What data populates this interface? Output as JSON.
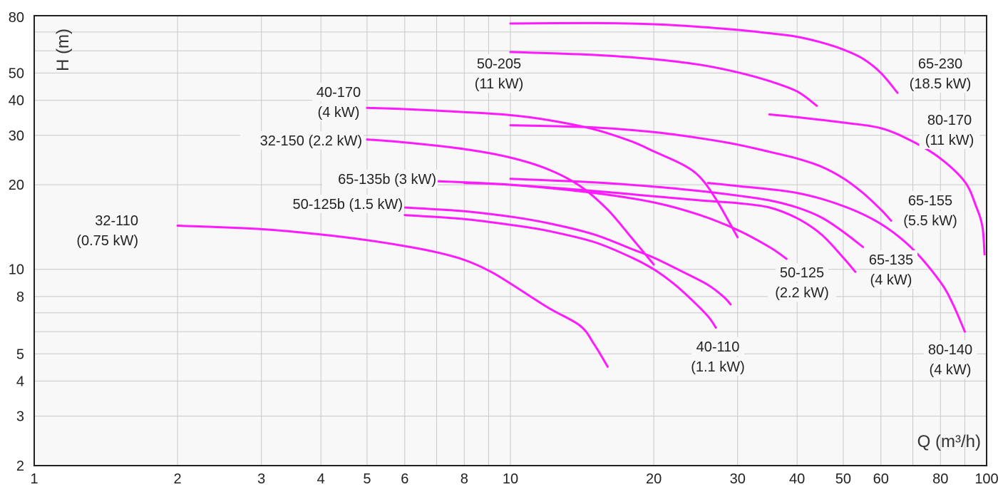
{
  "chart_data": {
    "type": "line",
    "x_scale": "log",
    "y_scale": "log",
    "xlim": [
      1,
      100
    ],
    "ylim": [
      2,
      80
    ],
    "grid": true,
    "xlabel": "Q (m³/h)",
    "ylabel": "H (m)",
    "x_ticks": [
      1,
      2,
      3,
      4,
      5,
      6,
      8,
      10,
      20,
      30,
      40,
      50,
      60,
      80,
      100
    ],
    "x_ticks_unlabeled": [
      7,
      9,
      70,
      90
    ],
    "y_ticks": [
      2,
      3,
      4,
      5,
      8,
      10,
      20,
      30,
      40,
      50,
      80
    ],
    "y_ticks_unlabeled": [
      6,
      7,
      60,
      70
    ],
    "colors": {
      "curve": "#ff1aff",
      "frame": "#222222",
      "background": "#f8f8f8"
    },
    "series": [
      {
        "name": "32-110 (0.75 kW)",
        "label_lines": [
          "32-110",
          "(0.75 kW)"
        ],
        "label_anchor": "end",
        "x": [
          2,
          3,
          4,
          5,
          6,
          7,
          8,
          9,
          10,
          12,
          14,
          15,
          16
        ],
        "y": [
          14.3,
          13.9,
          13.3,
          12.7,
          12.1,
          11.5,
          10.8,
          9.9,
          8.9,
          7.3,
          6.3,
          5.4,
          4.5
        ]
      },
      {
        "name": "50-125b (1.5 kW)",
        "label_lines": [
          "50-125b (1.5 kW)"
        ],
        "label_anchor": "end",
        "x": [
          6,
          8,
          10,
          12,
          15,
          18,
          20,
          22,
          24,
          26,
          27
        ],
        "y": [
          15.6,
          15.1,
          14.4,
          13.7,
          12.5,
          11.0,
          10.0,
          8.9,
          7.8,
          6.8,
          6.2
        ]
      },
      {
        "name": "40-110 (1.1 kW)",
        "label_lines": [
          "40-110",
          "(1.1 kW)"
        ],
        "label_anchor": "middle",
        "x": [
          6,
          8,
          10,
          12,
          15,
          18,
          20,
          23,
          26,
          28,
          29
        ],
        "y": [
          16.6,
          16.1,
          15.4,
          14.6,
          13.3,
          11.8,
          11.0,
          9.8,
          8.8,
          8.0,
          7.5
        ]
      },
      {
        "name": "32-150 (2.2 kW)",
        "label_lines": [
          "32-150 (2.2 kW)"
        ],
        "label_anchor": "end",
        "x": [
          5,
          6,
          8,
          10,
          12,
          14,
          16,
          18,
          20
        ],
        "y": [
          29,
          28.3,
          26.8,
          25.0,
          22.7,
          19.8,
          16.3,
          12.9,
          10.4
        ]
      },
      {
        "name": "40-170 (4 kW)",
        "label_lines": [
          "40-170",
          "(4 kW)"
        ],
        "label_anchor": "middle",
        "x": [
          5,
          6,
          8,
          10,
          12,
          15,
          18,
          20,
          23,
          25,
          27,
          30
        ],
        "y": [
          37.6,
          37.2,
          36.3,
          35.4,
          34.0,
          31.5,
          28.5,
          26.3,
          23.6,
          21.3,
          17.8,
          13.0
        ]
      },
      {
        "name": "65-135b (3 kW)",
        "label_lines": [
          "65-135b (3 kW)"
        ],
        "label_anchor": "end",
        "x": [
          7,
          10,
          15,
          20,
          25,
          30,
          35,
          38
        ],
        "y": [
          20.6,
          20.0,
          18.7,
          17.3,
          15.6,
          13.8,
          12.0,
          10.9
        ]
      },
      {
        "name": "50-125 (2.2 kW)",
        "label_lines": [
          "50-125",
          "(2.2 kW)"
        ],
        "label_anchor": "middle",
        "x": [
          8,
          10,
          15,
          20,
          25,
          30,
          35,
          40,
          45,
          50,
          53
        ],
        "y": [
          20.3,
          20.0,
          19.0,
          18.2,
          17.6,
          17.2,
          16.6,
          15.2,
          13.3,
          11.0,
          9.8
        ]
      },
      {
        "name": "65-135 (4 kW)",
        "label_lines": [
          "65-135",
          "(4 kW)"
        ],
        "label_anchor": "middle",
        "x": [
          10,
          15,
          20,
          25,
          30,
          35,
          40,
          45,
          50,
          55
        ],
        "y": [
          21.0,
          20.4,
          19.7,
          19.0,
          18.3,
          17.6,
          16.6,
          15.3,
          13.6,
          12.0
        ]
      },
      {
        "name": "65-155 (5.5 kW)",
        "label_lines": [
          "65-155",
          "(5.5 kW)"
        ],
        "label_anchor": "middle",
        "x": [
          10,
          15,
          20,
          25,
          30,
          35,
          40,
          45,
          50,
          55,
          60,
          63
        ],
        "y": [
          32.6,
          32.0,
          30.8,
          29.3,
          27.8,
          26.2,
          24.8,
          23.2,
          21.1,
          18.7,
          16.3,
          14.9
        ]
      },
      {
        "name": "80-140 (4 kW)",
        "label_lines": [
          "80-140",
          "(4 kW)"
        ],
        "label_anchor": "middle",
        "x": [
          26,
          30,
          40,
          50,
          60,
          70,
          80,
          85,
          90
        ],
        "y": [
          20.3,
          19.8,
          18.7,
          16.8,
          14.5,
          11.8,
          9.0,
          7.5,
          6.0
        ]
      },
      {
        "name": "80-170 (11 kW)",
        "label_lines": [
          "80-170",
          "(11 kW)"
        ],
        "label_anchor": "middle",
        "x": [
          35,
          40,
          50,
          60,
          70,
          80,
          90,
          95,
          98,
          99
        ],
        "y": [
          35.6,
          34.8,
          33.3,
          31.8,
          28.5,
          24.8,
          20.5,
          16.8,
          14.2,
          11.3
        ]
      },
      {
        "name": "50-205 (11 kW)",
        "label_lines": [
          "50-205",
          "(11 kW)"
        ],
        "label_anchor": "middle",
        "x": [
          10,
          15,
          20,
          25,
          30,
          35,
          40,
          44
        ],
        "y": [
          59.4,
          58.0,
          56.0,
          53.5,
          50.3,
          46.8,
          43.0,
          38.2
        ]
      },
      {
        "name": "65-230 (18.5 kW)",
        "label_lines": [
          "65-230",
          "(18.5 kW)"
        ],
        "label_anchor": "middle",
        "x": [
          10,
          15,
          20,
          25,
          30,
          35,
          40,
          45,
          50,
          55,
          60,
          65
        ],
        "y": [
          75.0,
          75.3,
          74.6,
          73.0,
          71.2,
          69.3,
          67.3,
          64.2,
          60.6,
          56.2,
          50.0,
          42.5
        ]
      }
    ]
  }
}
